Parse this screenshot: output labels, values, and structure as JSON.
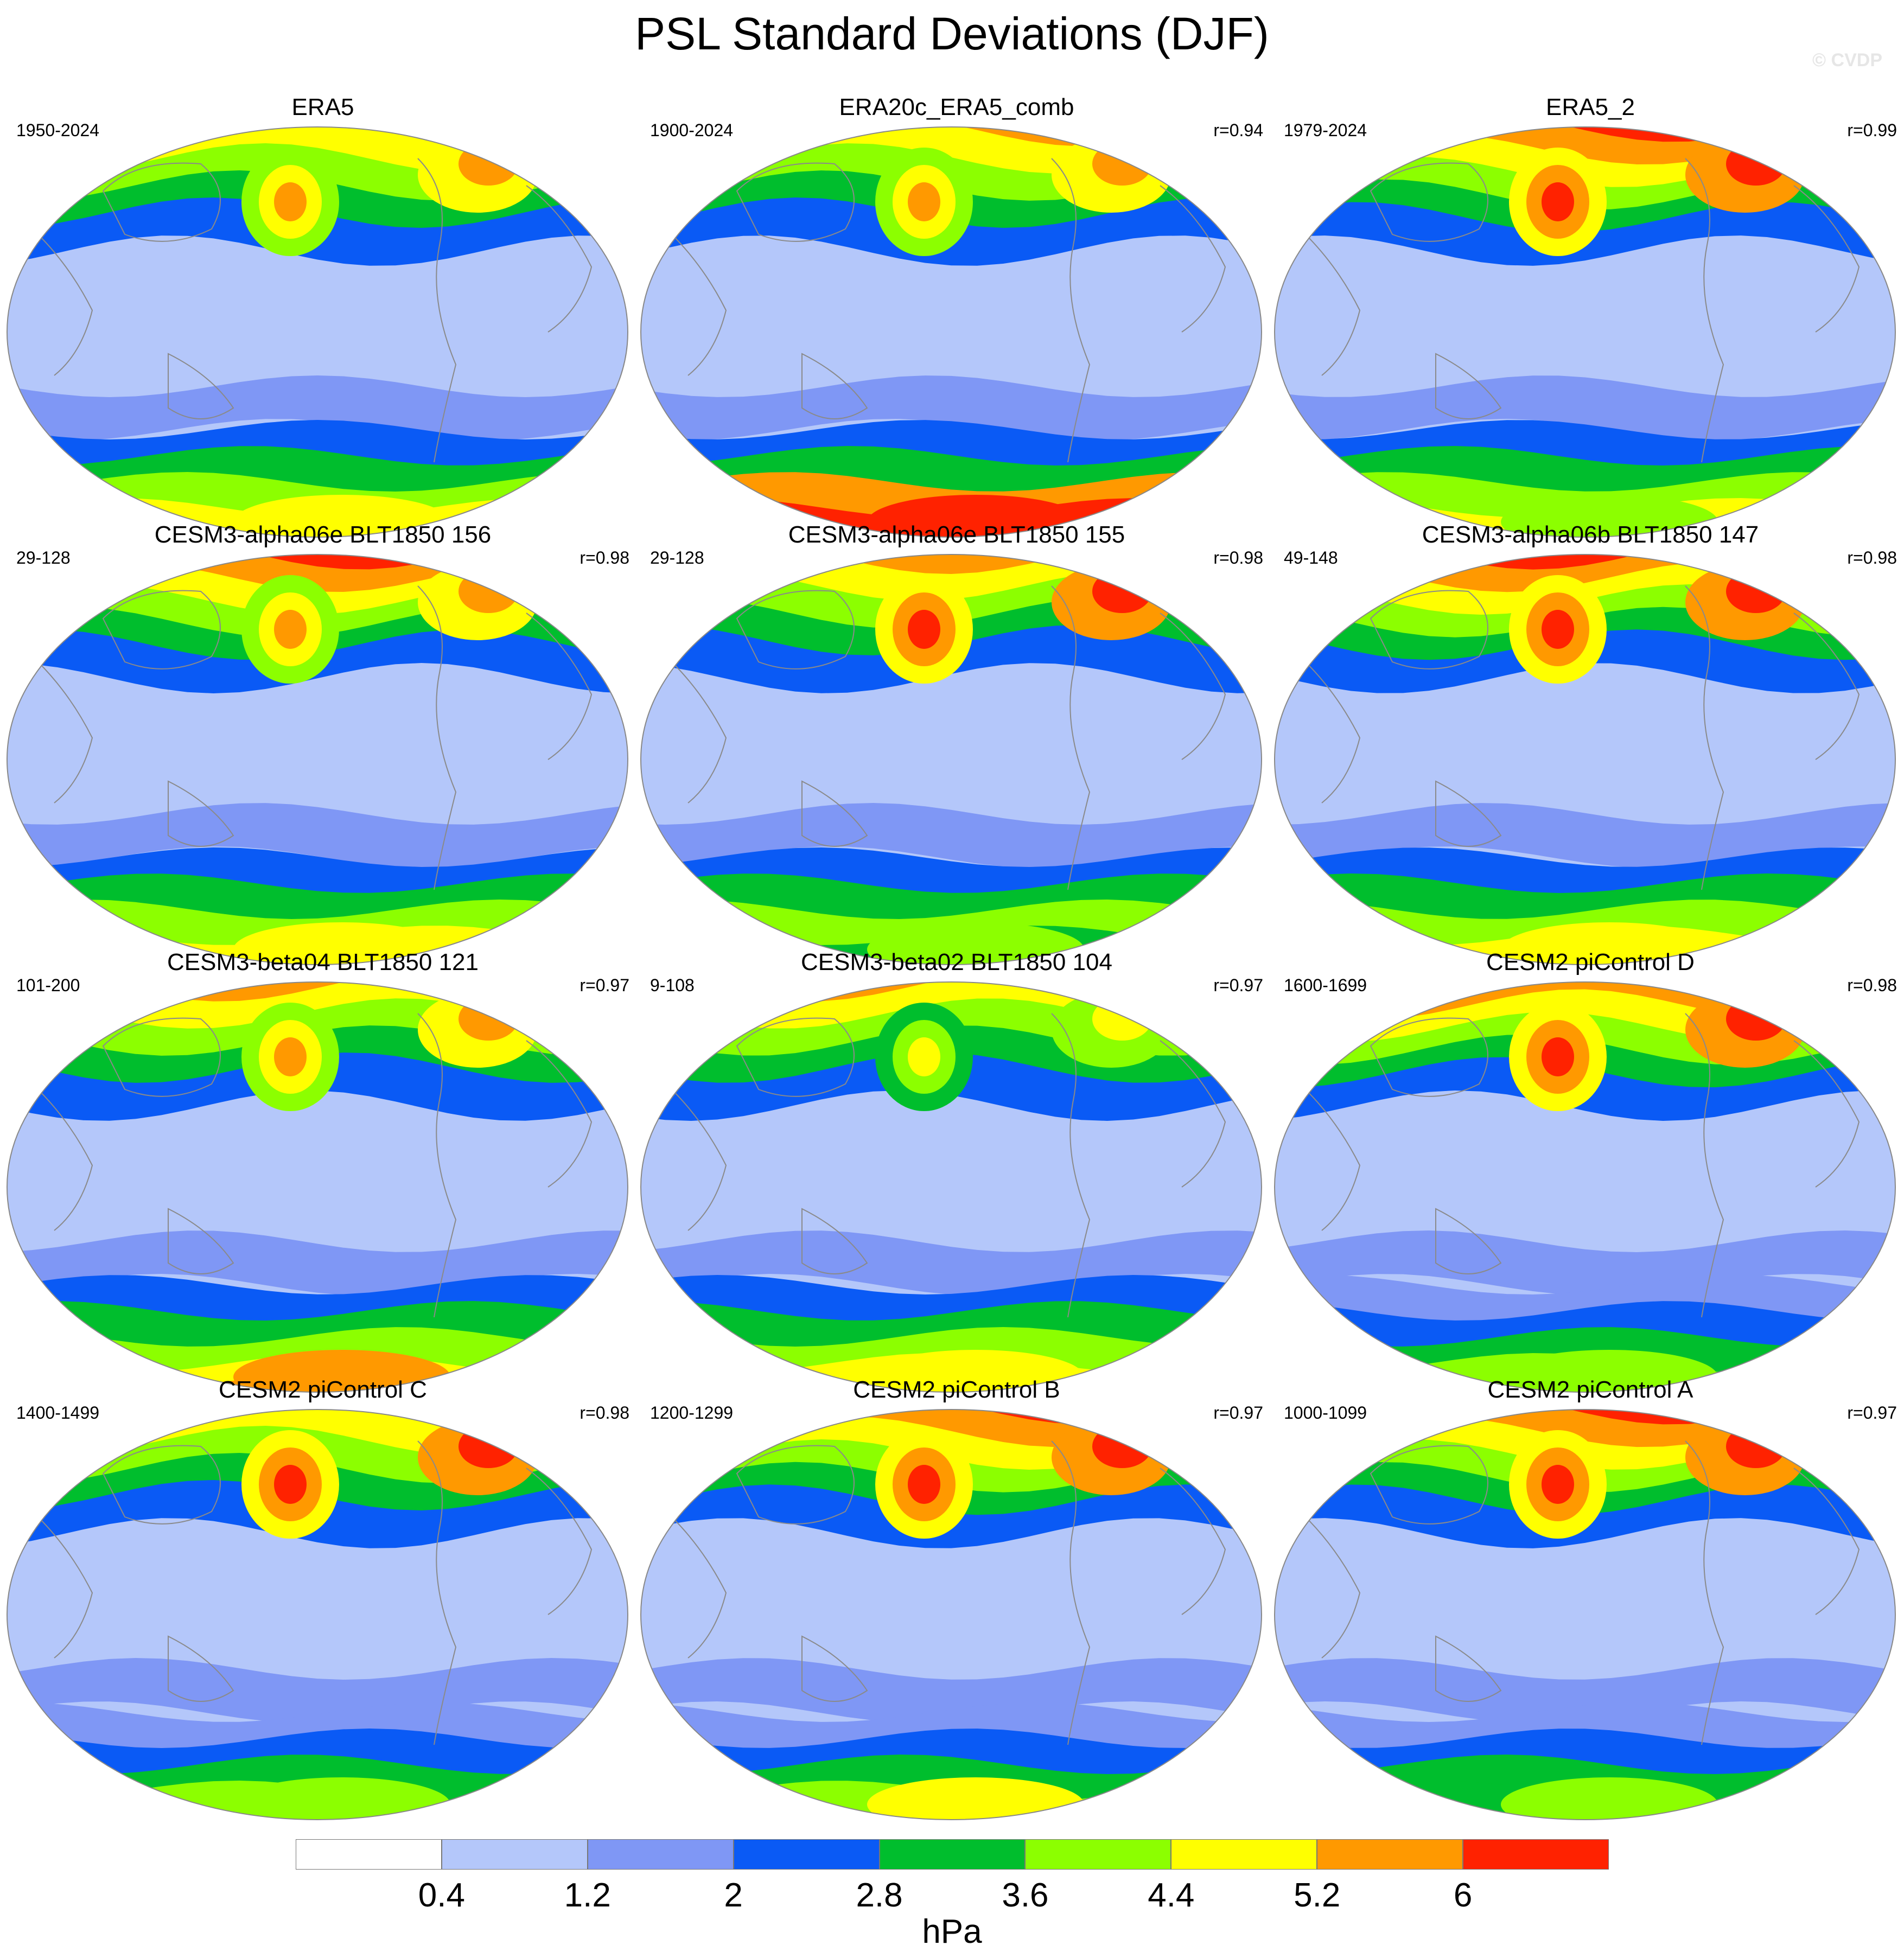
{
  "title": "PSL Standard Deviations (DJF)",
  "watermark": "© CVDP",
  "panels": [
    {
      "title": "ERA5",
      "years": "1950-2024",
      "r": "",
      "style": "obs"
    },
    {
      "title": "ERA20c_ERA5_comb",
      "years": "1900-2024",
      "r": "r=0.94",
      "style": "obs20c"
    },
    {
      "title": "ERA5_2",
      "years": "1979-2024",
      "r": "r=0.99",
      "style": "obs2"
    },
    {
      "title": "CESM3-alpha06e BLT1850 156",
      "years": "29-128",
      "r": "r=0.98",
      "style": "c3a"
    },
    {
      "title": "CESM3-alpha06e BLT1850 155",
      "years": "29-128",
      "r": "r=0.98",
      "style": "c3b"
    },
    {
      "title": "CESM3-alpha06b BLT1850 147",
      "years": "49-148",
      "r": "r=0.98",
      "style": "c3c"
    },
    {
      "title": "CESM3-beta04 BLT1850 121",
      "years": "101-200",
      "r": "r=0.97",
      "style": "beta04"
    },
    {
      "title": "CESM3-beta02 BLT1850 104",
      "years": "9-108",
      "r": "r=0.97",
      "style": "beta02"
    },
    {
      "title": "CESM2 piControl D",
      "years": "1600-1699",
      "r": "r=0.98",
      "style": "c2d"
    },
    {
      "title": "CESM2 piControl C",
      "years": "1400-1499",
      "r": "r=0.98",
      "style": "c2c"
    },
    {
      "title": "CESM2 piControl B",
      "years": "1200-1299",
      "r": "r=0.97",
      "style": "c2b"
    },
    {
      "title": "CESM2 piControl A",
      "years": "1000-1099",
      "r": "r=0.97",
      "style": "c2a"
    }
  ],
  "colorbar": {
    "levels": [
      "0.4",
      "1.2",
      "2",
      "2.8",
      "3.6",
      "4.4",
      "5.2",
      "6"
    ],
    "colors": [
      "#ffffff",
      "#b4c7fa",
      "#7f97f5",
      "#0a5af5",
      "#00be2d",
      "#8cff00",
      "#ffff00",
      "#ff9900",
      "#ff2200"
    ],
    "units": "hPa"
  }
}
